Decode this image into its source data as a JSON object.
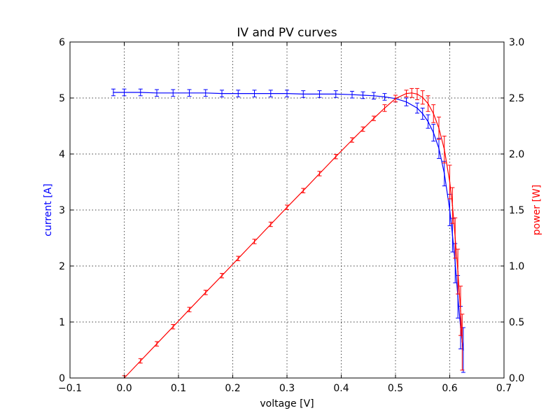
{
  "chart_data": {
    "type": "line",
    "title": "IV and PV curves",
    "xlabel": "voltage [V]",
    "xlim": [
      -0.1,
      0.7
    ],
    "xticks": [
      "−0.1",
      "0.0",
      "0.1",
      "0.2",
      "0.3",
      "0.4",
      "0.5",
      "0.6",
      "0.7"
    ],
    "xtick_values": [
      -0.1,
      0.0,
      0.1,
      0.2,
      0.3,
      0.4,
      0.5,
      0.6,
      0.7
    ],
    "grid": true,
    "left_axis": {
      "label": "current [A]",
      "color": "#0000ff",
      "ylim": [
        0,
        6
      ],
      "ticks": [
        "0",
        "1",
        "2",
        "3",
        "4",
        "5",
        "6"
      ],
      "tick_values": [
        0,
        1,
        2,
        3,
        4,
        5,
        6
      ]
    },
    "right_axis": {
      "label": "power [W]",
      "color": "#ff0000",
      "ylim": [
        0,
        3
      ],
      "ticks": [
        "0.0",
        "0.5",
        "1.0",
        "1.5",
        "2.0",
        "2.5",
        "3.0"
      ],
      "tick_values": [
        0.0,
        0.5,
        1.0,
        1.5,
        2.0,
        2.5,
        3.0
      ]
    },
    "series": [
      {
        "axis": "left",
        "color": "#0000ff",
        "x": [
          -0.02,
          0.0,
          0.03,
          0.06,
          0.09,
          0.12,
          0.15,
          0.18,
          0.21,
          0.24,
          0.27,
          0.3,
          0.33,
          0.36,
          0.39,
          0.42,
          0.44,
          0.46,
          0.48,
          0.5,
          0.52,
          0.54,
          0.55,
          0.56,
          0.57,
          0.58,
          0.59,
          0.6,
          0.605,
          0.61,
          0.615,
          0.62,
          0.625
        ],
        "y": [
          5.1,
          5.1,
          5.1,
          5.09,
          5.09,
          5.09,
          5.09,
          5.08,
          5.08,
          5.08,
          5.08,
          5.08,
          5.07,
          5.07,
          5.07,
          5.06,
          5.05,
          5.04,
          5.02,
          4.99,
          4.93,
          4.82,
          4.72,
          4.58,
          4.38,
          4.1,
          3.65,
          3.0,
          2.55,
          2.05,
          1.45,
          0.9,
          0.5
        ],
        "yerr": [
          0.06,
          0.06,
          0.06,
          0.06,
          0.06,
          0.06,
          0.06,
          0.06,
          0.06,
          0.06,
          0.06,
          0.06,
          0.06,
          0.06,
          0.06,
          0.06,
          0.06,
          0.06,
          0.06,
          0.06,
          0.07,
          0.09,
          0.1,
          0.12,
          0.15,
          0.18,
          0.22,
          0.28,
          0.3,
          0.35,
          0.38,
          0.38,
          0.4
        ]
      },
      {
        "axis": "right",
        "color": "#ff0000",
        "x": [
          0.0,
          0.03,
          0.06,
          0.09,
          0.12,
          0.15,
          0.18,
          0.21,
          0.24,
          0.27,
          0.3,
          0.33,
          0.36,
          0.39,
          0.42,
          0.44,
          0.46,
          0.48,
          0.5,
          0.52,
          0.53,
          0.54,
          0.55,
          0.56,
          0.57,
          0.58,
          0.59,
          0.6,
          0.605,
          0.61,
          0.615,
          0.62,
          0.623
        ],
        "y": [
          0.0,
          0.153,
          0.305,
          0.458,
          0.611,
          0.764,
          0.914,
          1.067,
          1.219,
          1.372,
          1.524,
          1.673,
          1.825,
          1.977,
          2.125,
          2.222,
          2.318,
          2.41,
          2.495,
          2.54,
          2.545,
          2.535,
          2.505,
          2.45,
          2.36,
          2.23,
          2.04,
          1.75,
          1.54,
          1.25,
          0.95,
          0.6,
          0.32
        ],
        "yerr": [
          0.02,
          0.02,
          0.02,
          0.02,
          0.02,
          0.02,
          0.02,
          0.02,
          0.02,
          0.02,
          0.02,
          0.02,
          0.02,
          0.02,
          0.02,
          0.02,
          0.02,
          0.03,
          0.03,
          0.03,
          0.04,
          0.05,
          0.06,
          0.07,
          0.08,
          0.1,
          0.12,
          0.15,
          0.16,
          0.18,
          0.2,
          0.22,
          0.25
        ]
      }
    ]
  }
}
